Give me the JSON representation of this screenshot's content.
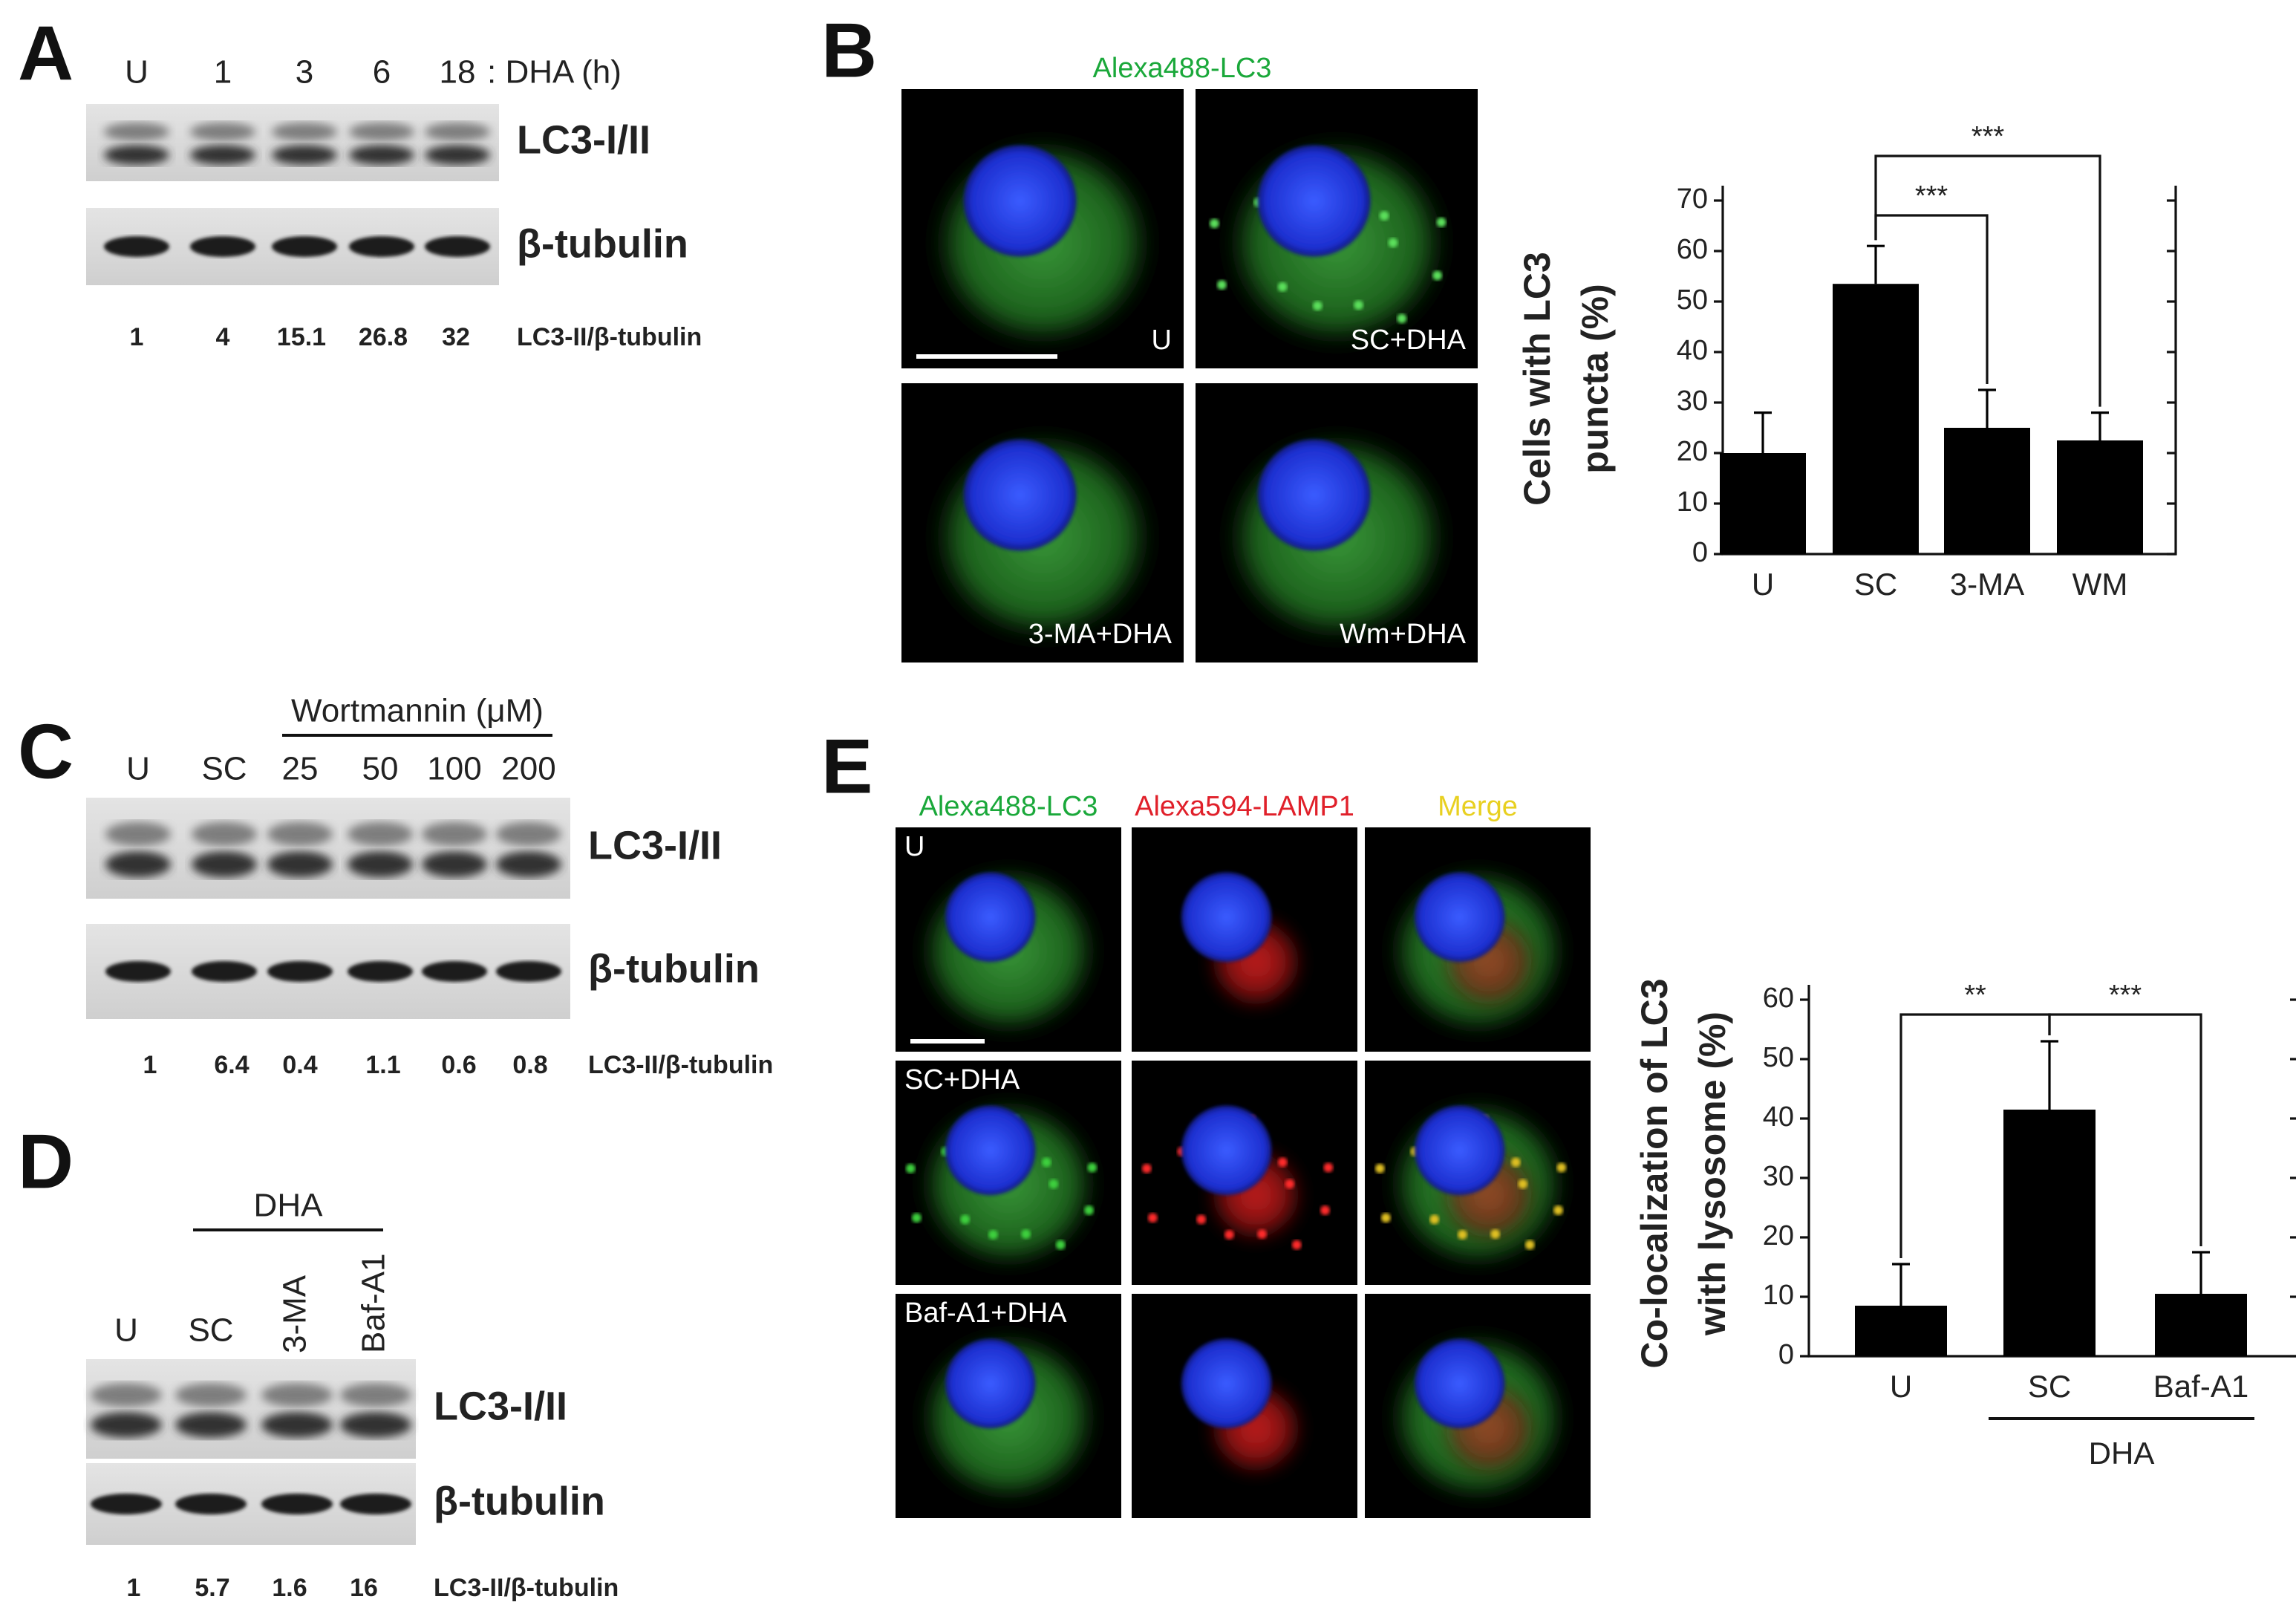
{
  "panel_a": {
    "letter": "A",
    "lanes": [
      "U",
      "1",
      "3",
      "6",
      "18"
    ],
    "treatment": ": DHA (h)",
    "blots": [
      "LC3-I/II",
      "β-tubulin"
    ],
    "ratio_label": "LC3-II/β-tubulin",
    "ratios": [
      1,
      4,
      15.1,
      26.8,
      32
    ]
  },
  "panel_b": {
    "letter": "B",
    "stain": "Alexa488-LC3",
    "images": [
      "U",
      "SC+DHA",
      "3-MA+DHA",
      "Wm+DHA"
    ]
  },
  "panel_c": {
    "letter": "C",
    "group": "Wortmannin (μM)",
    "lanes": [
      "U",
      "SC",
      "25",
      "50",
      "100",
      "200"
    ],
    "blots": [
      "LC3-I/II",
      "β-tubulin"
    ],
    "ratio_label": "LC3-II/β-tubulin",
    "ratios": [
      1,
      6.4,
      0.4,
      1.1,
      0.6,
      0.8
    ]
  },
  "panel_d": {
    "letter": "D",
    "group": "DHA",
    "lanes": [
      "U",
      "SC",
      "3-MA",
      "Baf-A1"
    ],
    "blots": [
      "LC3-I/II",
      "β-tubulin"
    ],
    "ratio_label": "LC3-II/β-tubulin",
    "ratios": [
      1,
      5.7,
      1.6,
      16
    ]
  },
  "panel_e": {
    "letter": "E",
    "stains": [
      "Alexa488-LC3",
      "Alexa594-LAMP1",
      "Merge"
    ],
    "rows": [
      "U",
      "SC+DHA",
      "Baf-A1+DHA"
    ]
  },
  "chart_data": [
    {
      "type": "bar",
      "y_label": [
        "Cells with LC3",
        "puncta (%)"
      ],
      "categories": [
        "U",
        "SC",
        "3-MA",
        "WM"
      ],
      "values": [
        20,
        53.5,
        25,
        22.5
      ],
      "errors": [
        8,
        7.5,
        7.5,
        5.5
      ],
      "color": "#000000",
      "ylim": [
        0,
        70
      ],
      "yticks": [
        0,
        10,
        20,
        30,
        40,
        50,
        60,
        70
      ],
      "significance": [
        {
          "between": [
            "SC",
            "3-MA"
          ],
          "label": "***"
        },
        {
          "between": [
            "SC",
            "WM"
          ],
          "label": "***"
        }
      ]
    },
    {
      "type": "bar",
      "y_label": [
        "Co-localization of LC3",
        "with lysosome (%)"
      ],
      "categories": [
        "U",
        "SC",
        "Baf-A1"
      ],
      "values": [
        8.5,
        41.5,
        10.5
      ],
      "errors": [
        7,
        11.5,
        7
      ],
      "color": "#000000",
      "ylim": [
        0,
        60
      ],
      "yticks": [
        0,
        10,
        20,
        30,
        40,
        50,
        60
      ],
      "group": {
        "label": "DHA",
        "categories": [
          "SC",
          "Baf-A1"
        ]
      },
      "significance": [
        {
          "between": [
            "U",
            "SC"
          ],
          "label": "**"
        },
        {
          "between": [
            "SC",
            "Baf-A1"
          ],
          "label": "***"
        }
      ]
    }
  ]
}
